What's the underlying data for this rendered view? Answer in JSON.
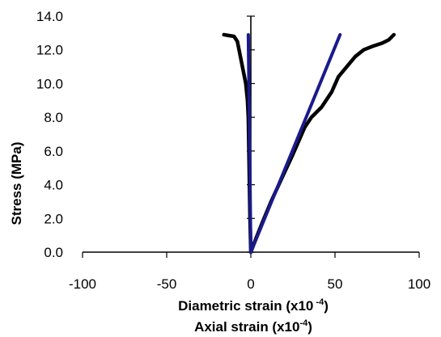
{
  "chart_data": {
    "type": "line",
    "title": "",
    "xlabel_lines": [
      {
        "prefix": "Diametric strain (x10",
        "superscript": " -4",
        "suffix": ")"
      },
      {
        "prefix": "Axial strain (x10",
        "superscript": "-4",
        "suffix": ")"
      }
    ],
    "ylabel": "Stress (MPa)",
    "xlim": [
      -100,
      100
    ],
    "ylim": [
      0.0,
      14.0
    ],
    "x_ticks": [
      -100,
      -50,
      0,
      50,
      100
    ],
    "x_tick_labels": [
      "-100",
      "-50",
      "0",
      "50",
      "100"
    ],
    "y_ticks": [
      0,
      2,
      4,
      6,
      8,
      10,
      12,
      14
    ],
    "y_tick_labels": [
      "0.0",
      "2.0",
      "4.0",
      "6.0",
      "8.0",
      "10.0",
      "12.0",
      "14.0"
    ],
    "grid": false,
    "legend": "none",
    "series": [
      {
        "role": "diametric-data",
        "color": "#000000",
        "x": [
          -16,
          -13,
          -10,
          -8,
          -7,
          -6,
          -5,
          -4,
          -3,
          -2,
          -1.5,
          -1,
          -0.5,
          0
        ],
        "y": [
          12.9,
          12.85,
          12.8,
          12.5,
          12.0,
          11.5,
          11.0,
          10.5,
          10.0,
          9.0,
          8.0,
          5.0,
          2.0,
          0.0
        ]
      },
      {
        "role": "axial-data",
        "color": "#000000",
        "x": [
          0,
          3,
          7,
          12,
          18,
          25,
          32,
          36,
          42,
          48,
          52,
          57,
          62,
          67,
          72,
          78,
          82,
          85
        ],
        "y": [
          0.0,
          0.8,
          1.8,
          3.0,
          4.3,
          5.8,
          7.4,
          8.0,
          8.6,
          9.5,
          10.4,
          11.0,
          11.6,
          12.0,
          12.2,
          12.4,
          12.6,
          12.9
        ]
      },
      {
        "role": "diametric-linear-fit",
        "color": "#1a1a8c",
        "x": [
          0,
          -1.5
        ],
        "y": [
          0.0,
          12.9
        ]
      },
      {
        "role": "axial-linear-fit",
        "color": "#1a1a8c",
        "x": [
          0,
          53
        ],
        "y": [
          0.0,
          12.9
        ]
      }
    ]
  }
}
